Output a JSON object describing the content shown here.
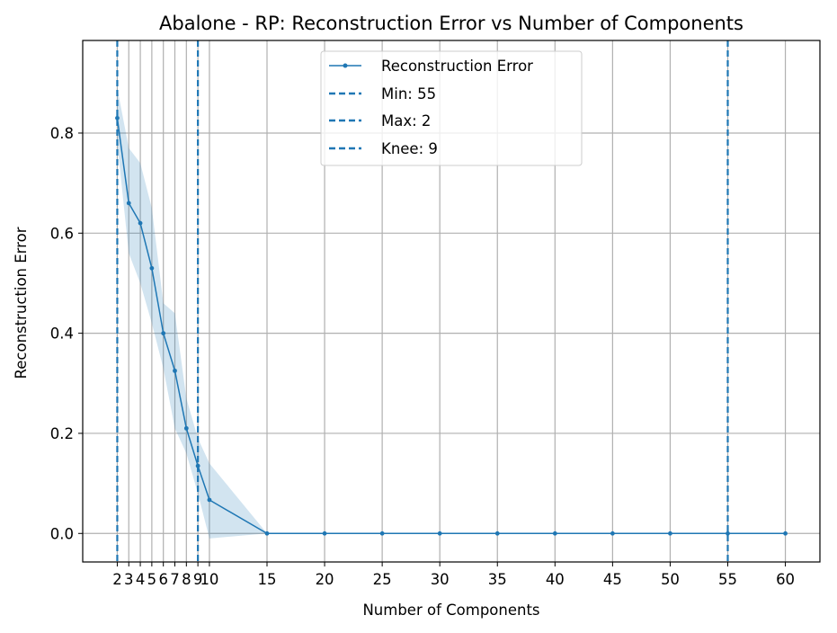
{
  "chart_data": {
    "type": "line",
    "title": "Abalone - RP: Reconstruction Error vs Number of Components",
    "xlabel": "Number of Components",
    "ylabel": "Reconstruction Error",
    "xlim": [
      -1,
      63
    ],
    "ylim": [
      -0.057,
      0.985
    ],
    "x_ticks": [
      2,
      3,
      4,
      5,
      6,
      7,
      8,
      9,
      10,
      15,
      20,
      25,
      30,
      35,
      40,
      45,
      50,
      55,
      60
    ],
    "x_tick_labels": [
      "2",
      "3",
      "4",
      "5",
      "6",
      "7",
      "8",
      "9",
      "10",
      "15",
      "20",
      "25",
      "30",
      "35",
      "40",
      "45",
      "50",
      "55",
      "60"
    ],
    "y_ticks": [
      0.0,
      0.2,
      0.4,
      0.6,
      0.8
    ],
    "y_tick_labels": [
      "0.0",
      "0.2",
      "0.4",
      "0.6",
      "0.8"
    ],
    "grid": true,
    "legend_position": "top-center",
    "series": [
      {
        "name": "Reconstruction Error",
        "color": "#1f77b4",
        "x": [
          2,
          3,
          4,
          5,
          6,
          7,
          8,
          9,
          10,
          15,
          20,
          25,
          30,
          35,
          40,
          45,
          50,
          55,
          60
        ],
        "values": [
          0.83,
          0.66,
          0.62,
          0.53,
          0.4,
          0.325,
          0.21,
          0.135,
          0.067,
          0.0,
          0.0,
          0.0,
          0.0,
          0.0,
          0.0,
          0.0,
          0.0,
          0.0,
          0.0
        ],
        "band_upper": [
          0.89,
          0.77,
          0.74,
          0.65,
          0.46,
          0.44,
          0.27,
          0.19,
          0.14,
          0.0,
          0.0,
          0.0,
          0.0,
          0.0,
          0.0,
          0.0,
          0.0,
          0.0,
          0.0
        ],
        "band_lower": [
          0.78,
          0.56,
          0.5,
          0.42,
          0.33,
          0.21,
          0.16,
          0.08,
          -0.01,
          0.0,
          0.0,
          0.0,
          0.0,
          0.0,
          0.0,
          0.0,
          0.0,
          0.0,
          0.0
        ]
      }
    ],
    "vlines": [
      {
        "name": "Min: 55",
        "x": 55,
        "color": "#1f77b4"
      },
      {
        "name": "Max: 2",
        "x": 2,
        "color": "#1f77b4"
      },
      {
        "name": "Knee: 9",
        "x": 9,
        "color": "#1f77b4"
      }
    ],
    "band_color": "#1f77b4",
    "grid_color": "#b0b0b0"
  }
}
